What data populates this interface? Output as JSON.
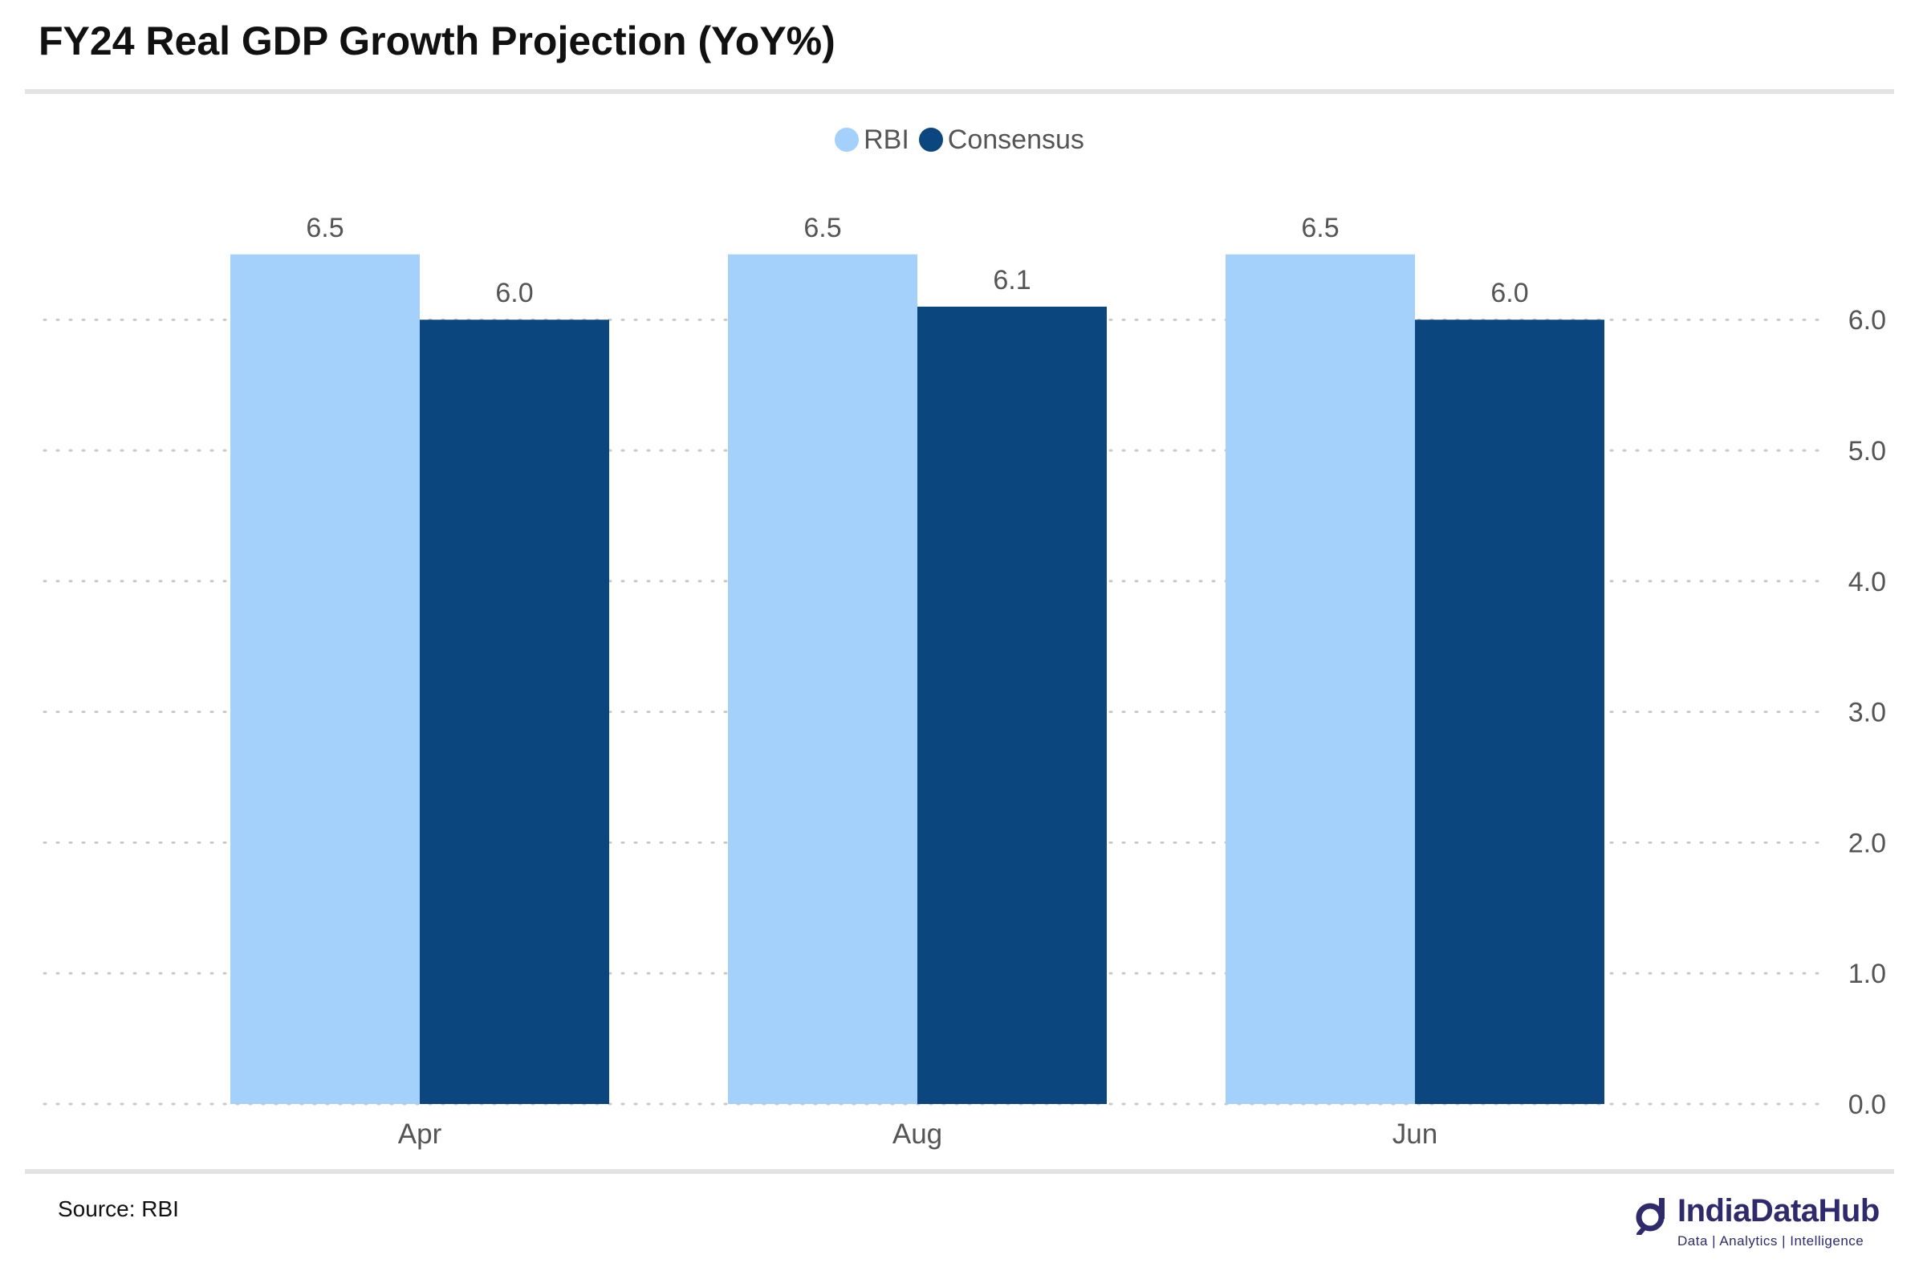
{
  "header": {
    "title": "FY24 Real GDP Growth Projection (YoY%)"
  },
  "footer": {
    "source": "Source: RBI",
    "brand_name": "IndiaDataHub",
    "brand_tagline": "Data | Analytics | Intelligence"
  },
  "legend": {
    "items": [
      {
        "label": "RBI",
        "color": "#a3d1fc"
      },
      {
        "label": "Consensus",
        "color": "#0b477e"
      }
    ]
  },
  "chart_data": {
    "type": "bar",
    "title": "FY24 Real GDP Growth Projection (YoY%)",
    "categories": [
      "Apr",
      "Aug",
      "Jun"
    ],
    "series": [
      {
        "name": "RBI",
        "values": [
          6.5,
          6.5,
          6.5
        ],
        "color": "#a3d1fc"
      },
      {
        "name": "Consensus",
        "values": [
          6.0,
          6.1,
          6.0
        ],
        "color": "#0b477e"
      }
    ],
    "data_labels": true,
    "xlabel": "",
    "ylabel": "",
    "ylim": [
      0,
      6.5
    ],
    "y_ticks": [
      "0.0",
      "1.0",
      "2.0",
      "3.0",
      "4.0",
      "5.0",
      "6.0"
    ],
    "y_axis_side": "right",
    "grid": true,
    "grid_style": "dotted",
    "legend_position": "top-center"
  }
}
